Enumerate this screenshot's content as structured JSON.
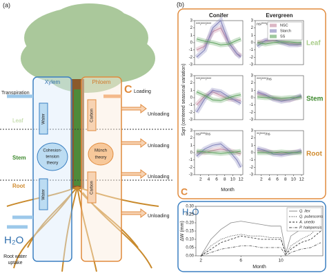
{
  "diagram": {
    "panel_label": "(a)",
    "xylem": "Xylem",
    "phloem": "Phloem",
    "c": "C",
    "loading": "Loading",
    "transpiration": "Transpiration",
    "water": [
      "Water",
      "Water"
    ],
    "carbon": [
      "Carbon",
      "Carbon"
    ],
    "unloading": [
      "Unloading",
      "Unloading",
      "Unloading",
      "Unloading"
    ],
    "leaf": "Leaf",
    "stem": "Stem",
    "root": "Root",
    "cohesion": [
      "Cohesion-",
      "tension",
      "theory"
    ],
    "munch": [
      "Münch",
      "theory"
    ],
    "h2o": "H₂O",
    "uptake": [
      "Root water",
      "uptake"
    ]
  },
  "panel_b": {
    "panel_label": "(b)",
    "y_label": "Sqrt (centered seasonal variation)",
    "x_label": "Month",
    "c": "C",
    "row_labels": [
      "Leaf",
      "Stem",
      "Root"
    ],
    "h2o": "H₂O"
  },
  "chart_data": [
    {
      "type": "line",
      "title": "Conifer",
      "annotation": "***/***/***",
      "x": [
        1,
        3,
        5,
        7,
        9,
        11,
        12
      ],
      "xlim": [
        0.5,
        12.5
      ],
      "ylim": [
        -3,
        3
      ],
      "yticks": [
        3,
        2,
        1,
        0,
        -1,
        -2,
        -3
      ],
      "series": [
        {
          "name": "NSC",
          "color": "#c5879f",
          "values": [
            -1,
            -0.5,
            1.5,
            2,
            0,
            -1.5,
            -1.8
          ]
        },
        {
          "name": "Starch",
          "color": "#7e7eb8",
          "values": [
            -2,
            -1,
            2,
            3,
            0,
            -1.5,
            -2
          ]
        },
        {
          "name": "SS",
          "color": "#5ea35e",
          "values": [
            0.5,
            0.2,
            0,
            -0.3,
            -0.2,
            0.3,
            0.5
          ]
        }
      ]
    },
    {
      "type": "line",
      "title": "Evergreen",
      "annotation": "ns/***/ns",
      "legend": "upper right",
      "x": [
        1,
        3,
        5,
        7,
        9,
        11,
        12
      ],
      "xlim": [
        0.5,
        12.5
      ],
      "ylim": [
        -3,
        3
      ],
      "yticks": [
        3,
        2,
        1,
        0,
        -1,
        -2,
        -3
      ],
      "series": [
        {
          "name": "NSC",
          "color": "#c5879f",
          "values": [
            0,
            0.2,
            0.3,
            0.1,
            -0.1,
            -0.2,
            -0.2
          ]
        },
        {
          "name": "Starch",
          "color": "#7e7eb8",
          "values": [
            -0.5,
            0.3,
            0.5,
            0,
            -0.3,
            -0.3,
            -0.2
          ]
        },
        {
          "name": "SS",
          "color": "#5ea35e",
          "values": [
            0,
            -0.2,
            0,
            0.1,
            0.1,
            0,
            0
          ]
        }
      ]
    },
    {
      "type": "line",
      "annotation": "***/***/***",
      "x": [
        1,
        3,
        5,
        7,
        9,
        11,
        12
      ],
      "xlim": [
        0.5,
        12.5
      ],
      "ylim": [
        -3,
        3
      ],
      "yticks": [
        3,
        2,
        1,
        0,
        -1,
        -2,
        -3
      ],
      "series": [
        {
          "name": "NSC",
          "color": "#c5879f",
          "values": [
            -1,
            0.2,
            0.8,
            0.3,
            -0.2,
            -0.3,
            -0.4
          ]
        },
        {
          "name": "Starch",
          "color": "#7e7eb8",
          "values": [
            -2,
            -0.2,
            1,
            0.8,
            0.1,
            -0.5,
            -0.8
          ]
        },
        {
          "name": "SS",
          "color": "#5ea35e",
          "values": [
            0.8,
            0.3,
            -0.3,
            -0.4,
            0,
            0.3,
            0.4
          ]
        }
      ]
    },
    {
      "type": "line",
      "annotation": "***/***/ns",
      "x": [
        1,
        3,
        5,
        7,
        9,
        11,
        12
      ],
      "xlim": [
        0.5,
        12.5
      ],
      "ylim": [
        -3,
        3
      ],
      "yticks": [
        3,
        2,
        1,
        0,
        -1,
        -2,
        -3
      ],
      "series": [
        {
          "name": "NSC",
          "color": "#c5879f",
          "values": [
            0.6,
            0.3,
            -0.1,
            -0.3,
            -0.3,
            0,
            0.2
          ]
        },
        {
          "name": "Starch",
          "color": "#7e7eb8",
          "values": [
            0.8,
            0.4,
            -0.2,
            -0.5,
            -0.3,
            0.1,
            0.3
          ]
        },
        {
          "name": "SS",
          "color": "#5ea35e",
          "values": [
            0.1,
            0,
            0,
            -0.1,
            0,
            0,
            0.1
          ]
        }
      ]
    },
    {
      "type": "line",
      "annotation": "ns/***/ns",
      "x": [
        1,
        3,
        5,
        7,
        9,
        11,
        12
      ],
      "xlim": [
        0.5,
        12.5
      ],
      "xticks": [
        2,
        4,
        6,
        8,
        10,
        12
      ],
      "ylim": [
        -3,
        3
      ],
      "yticks": [
        3,
        2,
        1,
        0,
        -1,
        -2,
        -3
      ],
      "series": [
        {
          "name": "NSC",
          "color": "#c5879f",
          "values": [
            0,
            0,
            0.3,
            0.5,
            0.3,
            0,
            -0.2
          ]
        },
        {
          "name": "Starch",
          "color": "#7e7eb8",
          "values": [
            -0.5,
            0.5,
            1,
            1.2,
            0.3,
            -1,
            -2
          ]
        },
        {
          "name": "SS",
          "color": "#5ea35e",
          "values": [
            0.2,
            0.1,
            0,
            -0.1,
            0,
            0.1,
            0.2
          ]
        }
      ]
    },
    {
      "type": "line",
      "annotation": "**/***/ns",
      "x": [
        1,
        3,
        5,
        7,
        9,
        11,
        12
      ],
      "xlim": [
        0.5,
        12.5
      ],
      "xticks": [
        2,
        4,
        6,
        8,
        10,
        12
      ],
      "ylim": [
        -3,
        3
      ],
      "yticks": [
        3,
        2,
        1,
        0,
        -1,
        -2,
        -3
      ],
      "series": [
        {
          "name": "NSC",
          "color": "#c5879f",
          "values": [
            0.3,
            0.2,
            0,
            -0.1,
            0,
            0.1,
            0.2
          ]
        },
        {
          "name": "Starch",
          "color": "#7e7eb8",
          "values": [
            0.6,
            0.3,
            -0.2,
            -0.3,
            -0.1,
            0.1,
            0.3
          ]
        },
        {
          "name": "SS",
          "color": "#5ea35e",
          "values": [
            0,
            0,
            0,
            0.1,
            0,
            0,
            0
          ]
        }
      ]
    },
    {
      "type": "line",
      "x_label": "Month",
      "y_label": "ΔW (mm)",
      "legend": "upper right",
      "x": [
        2,
        3,
        4,
        5,
        6,
        7,
        8,
        9,
        10,
        10.5,
        11,
        12,
        13,
        14
      ],
      "xlim": [
        1.5,
        14.2
      ],
      "xticks": [
        2,
        6,
        10
      ],
      "ylim": [
        0,
        0.3
      ],
      "yticks": [
        {
          "value": 0,
          "label": "0.00"
        },
        {
          "value": 0.05,
          "label": "0.05"
        },
        {
          "value": 0.1,
          "label": "0.10"
        },
        {
          "value": 0.15,
          "label": "0.15"
        },
        {
          "value": 0.2,
          "label": "0.20"
        },
        {
          "value": 0.25,
          "label": "0.25"
        },
        {
          "value": 0.3,
          "label": "0.30"
        }
      ],
      "series": [
        {
          "name": "Q. ilex",
          "color": "#888888",
          "dash": "solid",
          "values": [
            0,
            0.1,
            0.16,
            0.2,
            0.21,
            0.2,
            0.19,
            0.18,
            0.18,
            0.02,
            0.12,
            0.16,
            0.2,
            0.28
          ]
        },
        {
          "name": "Q. pubescens",
          "color": "#222222",
          "dash": "dotted",
          "values": [
            0,
            0.06,
            0.1,
            0.12,
            0.13,
            0.12,
            0.12,
            0.11,
            0.11,
            0.01,
            0.06,
            0.1,
            0.13,
            0.2
          ]
        },
        {
          "name": "A. unedo",
          "color": "#222222",
          "dash": "dashed",
          "values": [
            0,
            0.04,
            0.08,
            0.1,
            0.12,
            0.11,
            0.1,
            0.1,
            0.1,
            0.01,
            0.04,
            0.08,
            0.1,
            0.15
          ]
        },
        {
          "name": "P. halepensis",
          "color": "#444444",
          "dash": "dashdot",
          "values": [
            0,
            0.02,
            0.04,
            0.05,
            0.06,
            0.06,
            0.05,
            0.05,
            0.05,
            0,
            0.02,
            0.04,
            0.05,
            0.08
          ]
        }
      ]
    }
  ]
}
